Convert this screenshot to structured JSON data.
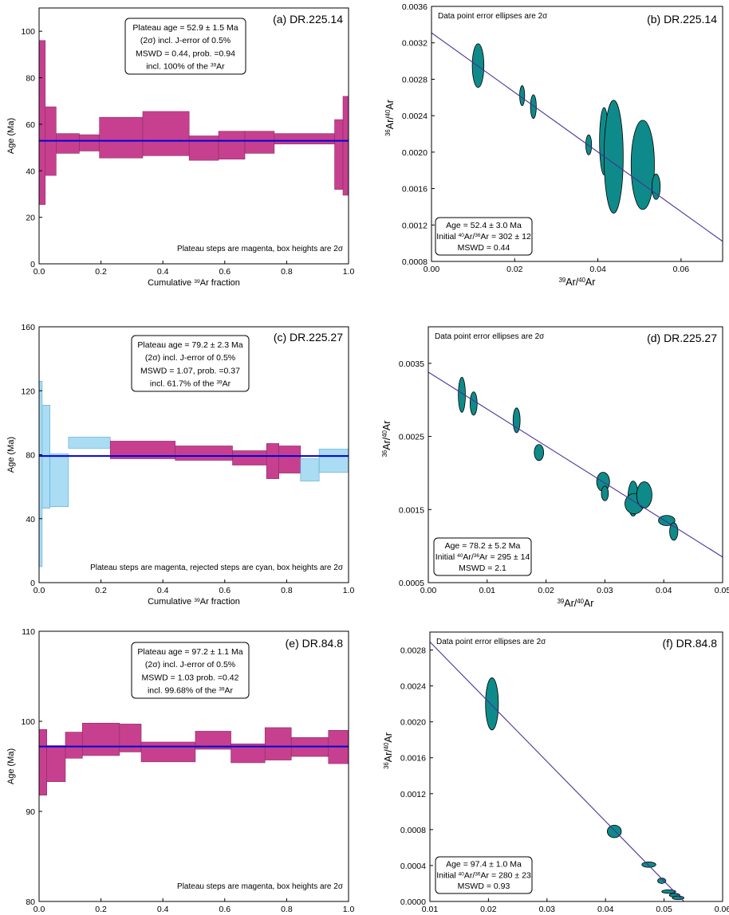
{
  "figure": {
    "panels": [
      {
        "id": "a",
        "title": "(a) DR.225.14"
      },
      {
        "id": "b",
        "title": "(b) DR.225.14"
      },
      {
        "id": "c",
        "title": "(c) DR.225.27"
      },
      {
        "id": "d",
        "title": "(d) DR.225.27"
      },
      {
        "id": "e",
        "title": "(e) DR.84.8"
      },
      {
        "id": "f",
        "title": "(f) DR.84.8"
      }
    ]
  },
  "chart_data": [
    {
      "panel": "a",
      "type": "bar",
      "subtype": "age-spectrum",
      "title": "(a) DR.225.14",
      "xlabel": "Cumulative 39Ar fraction",
      "ylabel": "Age (Ma)",
      "xlim": [
        0,
        1
      ],
      "ylim": [
        0,
        110
      ],
      "xticks": [
        0,
        0.2,
        0.4,
        0.6,
        0.8,
        1
      ],
      "xticklabels": [
        "0.0",
        "0.2",
        "0.4",
        "0.6",
        "0.8",
        "1.0"
      ],
      "yticks": [
        0,
        20,
        40,
        60,
        80,
        100
      ],
      "yticklabels": [
        "0",
        "20",
        "40",
        "60",
        "80",
        "100"
      ],
      "plateau_age": 52.9,
      "steps": [
        {
          "x0": 0.0,
          "x1": 0.02,
          "low": 25.5,
          "high": 96,
          "status": "plateau"
        },
        {
          "x0": 0.02,
          "x1": 0.055,
          "low": 38,
          "high": 67.5,
          "status": "plateau"
        },
        {
          "x0": 0.055,
          "x1": 0.13,
          "low": 47.5,
          "high": 56,
          "status": "plateau"
        },
        {
          "x0": 0.13,
          "x1": 0.195,
          "low": 48.5,
          "high": 55.5,
          "status": "plateau"
        },
        {
          "x0": 0.195,
          "x1": 0.335,
          "low": 45.5,
          "high": 63,
          "status": "plateau"
        },
        {
          "x0": 0.335,
          "x1": 0.485,
          "low": 46.5,
          "high": 65.5,
          "status": "plateau"
        },
        {
          "x0": 0.485,
          "x1": 0.58,
          "low": 44.5,
          "high": 55,
          "status": "plateau"
        },
        {
          "x0": 0.58,
          "x1": 0.665,
          "low": 45,
          "high": 57,
          "status": "plateau"
        },
        {
          "x0": 0.665,
          "x1": 0.76,
          "low": 47.5,
          "high": 57,
          "status": "plateau"
        },
        {
          "x0": 0.76,
          "x1": 0.955,
          "low": 51.5,
          "high": 56,
          "status": "plateau"
        },
        {
          "x0": 0.955,
          "x1": 0.982,
          "low": 32,
          "high": 62,
          "status": "plateau"
        },
        {
          "x0": 0.982,
          "x1": 1.0,
          "low": 29.5,
          "high": 72,
          "status": "plateau"
        }
      ],
      "info_lines": [
        "Plateau age = 52.9 ± 1.5 Ma",
        "(2σ) incl. J-error of 0.5%",
        "MSWD = 0.44, prob. =0.94",
        "incl. 100% of the 39Ar"
      ],
      "note": "Plateau steps are magenta, box heights are 2σ"
    },
    {
      "panel": "b",
      "type": "scatter",
      "subtype": "inverse-isochron",
      "title": "(b) DR.225.14",
      "xlabel": "39Ar/40Ar",
      "ylabel": "36Ar/40Ar",
      "xlim": [
        0,
        0.07
      ],
      "ylim": [
        0.0008,
        0.0036
      ],
      "xticks": [
        0,
        0.02,
        0.04,
        0.06
      ],
      "xticklabels": [
        "0.00",
        "0.02",
        "0.04",
        "0.06"
      ],
      "yticks": [
        0.0008,
        0.0012,
        0.0016,
        0.002,
        0.0024,
        0.0028,
        0.0032,
        0.0036
      ],
      "yticklabels": [
        "0.0008",
        "0.0012",
        "0.0016",
        "0.0020",
        "0.0024",
        "0.0028",
        "0.0032",
        "0.0036"
      ],
      "points": [
        {
          "x": 0.0112,
          "y": 0.00295,
          "ex": 0.0014,
          "ey": 0.00024
        },
        {
          "x": 0.0218,
          "y": 0.00262,
          "ex": 0.0006,
          "ey": 0.00011
        },
        {
          "x": 0.0245,
          "y": 0.0025,
          "ex": 0.0007,
          "ey": 0.00013
        },
        {
          "x": 0.0378,
          "y": 0.00208,
          "ex": 0.0007,
          "ey": 0.00011
        },
        {
          "x": 0.0415,
          "y": 0.00212,
          "ex": 0.0011,
          "ey": 0.00037
        },
        {
          "x": 0.0438,
          "y": 0.00195,
          "ex": 0.0023,
          "ey": 0.00062
        },
        {
          "x": 0.0508,
          "y": 0.00186,
          "ex": 0.0028,
          "ey": 0.00049
        },
        {
          "x": 0.054,
          "y": 0.00162,
          "ex": 0.001,
          "ey": 0.00014
        }
      ],
      "fit_line": [
        [
          0,
          0.00331
        ],
        [
          0.07,
          0.00102
        ]
      ],
      "header_note": "Data point error ellipses are 2σ",
      "info_lines": [
        "Age = 52.4 ± 3.0 Ma",
        "Initial 40Ar/36Ar = 302 ± 12",
        "MSWD = 0.44"
      ]
    },
    {
      "panel": "c",
      "type": "bar",
      "subtype": "age-spectrum",
      "title": "(c) DR.225.27",
      "xlabel": "Cumulative 39Ar fraction",
      "ylabel": "Age (Ma)",
      "xlim": [
        0,
        1
      ],
      "ylim": [
        0,
        160
      ],
      "xticks": [
        0,
        0.2,
        0.4,
        0.6,
        0.8,
        1
      ],
      "xticklabels": [
        "0.0",
        "0.2",
        "0.4",
        "0.6",
        "0.8",
        "1.0"
      ],
      "yticks": [
        0,
        40,
        80,
        120,
        160
      ],
      "yticklabels": [
        "0",
        "40",
        "80",
        "120",
        "160"
      ],
      "plateau_age": 79.2,
      "steps": [
        {
          "x0": 0.0,
          "x1": 0.01,
          "low": 10,
          "high": 126,
          "status": "rejected"
        },
        {
          "x0": 0.01,
          "x1": 0.035,
          "low": 46.5,
          "high": 111,
          "status": "rejected"
        },
        {
          "x0": 0.035,
          "x1": 0.095,
          "low": 47.5,
          "high": 80.5,
          "status": "rejected"
        },
        {
          "x0": 0.095,
          "x1": 0.23,
          "low": 84,
          "high": 91,
          "status": "rejected"
        },
        {
          "x0": 0.23,
          "x1": 0.44,
          "low": 77.5,
          "high": 88.5,
          "status": "plateau"
        },
        {
          "x0": 0.44,
          "x1": 0.625,
          "low": 76.5,
          "high": 85.5,
          "status": "plateau"
        },
        {
          "x0": 0.625,
          "x1": 0.735,
          "low": 73.5,
          "high": 82.5,
          "status": "plateau"
        },
        {
          "x0": 0.735,
          "x1": 0.775,
          "low": 65,
          "high": 87,
          "status": "plateau"
        },
        {
          "x0": 0.775,
          "x1": 0.845,
          "low": 68.5,
          "high": 85.5,
          "status": "plateau"
        },
        {
          "x0": 0.845,
          "x1": 0.905,
          "low": 63.5,
          "high": 77.5,
          "status": "rejected"
        },
        {
          "x0": 0.905,
          "x1": 1.0,
          "low": 69,
          "high": 83.5,
          "status": "rejected"
        }
      ],
      "info_lines": [
        "Plateau age = 79.2 ± 2.3 Ma",
        "(2σ) incl. J-error of 0.5%",
        "MSWD = 1.07, prob. =0.37",
        "incl. 61.7% of the 39Ar"
      ],
      "note": "Plateau steps are magenta, rejected steps are cyan, box heights are 2σ"
    },
    {
      "panel": "d",
      "type": "scatter",
      "subtype": "inverse-isochron",
      "title": "(d) DR.225.27",
      "xlabel": "39Ar/40Ar",
      "ylabel": "36Ar/40Ar",
      "xlim": [
        0,
        0.05
      ],
      "ylim": [
        0.0005,
        0.004
      ],
      "xticks": [
        0,
        0.01,
        0.02,
        0.03,
        0.04,
        0.05
      ],
      "xticklabels": [
        "0.00",
        "0.01",
        "0.02",
        "0.03",
        "0.04",
        "0.05"
      ],
      "yticks": [
        0.0005,
        0.0015,
        0.0025,
        0.0035
      ],
      "yticklabels": [
        "0.0005",
        "0.0015",
        "0.0025",
        "0.0035"
      ],
      "points": [
        {
          "x": 0.0057,
          "y": 0.00307,
          "ex": 0.0006,
          "ey": 0.00024
        },
        {
          "x": 0.0077,
          "y": 0.00295,
          "ex": 0.0006,
          "ey": 0.00016
        },
        {
          "x": 0.015,
          "y": 0.00272,
          "ex": 0.0006,
          "ey": 0.00017
        },
        {
          "x": 0.0188,
          "y": 0.00228,
          "ex": 0.0008,
          "ey": 0.00011
        },
        {
          "x": 0.0297,
          "y": 0.00188,
          "ex": 0.0011,
          "ey": 0.00013
        },
        {
          "x": 0.03,
          "y": 0.00172,
          "ex": 0.0006,
          "ey": 0.0001
        },
        {
          "x": 0.0348,
          "y": 0.00165,
          "ex": 0.0009,
          "ey": 0.00024
        },
        {
          "x": 0.035,
          "y": 0.00158,
          "ex": 0.0016,
          "ey": 0.00014
        },
        {
          "x": 0.0367,
          "y": 0.0017,
          "ex": 0.0013,
          "ey": 0.00018
        },
        {
          "x": 0.0405,
          "y": 0.00135,
          "ex": 0.0014,
          "ey": 7e-05
        },
        {
          "x": 0.0417,
          "y": 0.0012,
          "ex": 0.0007,
          "ey": 0.00012
        }
      ],
      "fit_line": [
        [
          0,
          0.00338
        ],
        [
          0.05,
          0.00085
        ]
      ],
      "header_note": "Data point error ellipses are 2σ",
      "info_lines": [
        "Age = 78.2 ± 5.2 Ma",
        "Initial 40Ar/36Ar = 295 ± 14",
        "MSWD = 2.1"
      ]
    },
    {
      "panel": "e",
      "type": "bar",
      "subtype": "age-spectrum",
      "title": "(e) DR.84.8",
      "xlabel": "Cumulative 39Ar fraction",
      "ylabel": "Age (Ma)",
      "xlim": [
        0,
        1
      ],
      "ylim": [
        80,
        110
      ],
      "xticks": [
        0,
        0.2,
        0.4,
        0.6,
        0.8,
        1
      ],
      "xticklabels": [
        "0.0",
        "0.2",
        "0.4",
        "0.6",
        "0.8",
        "1.0"
      ],
      "yticks": [
        80,
        90,
        100,
        110
      ],
      "yticklabels": [
        "80",
        "90",
        "100",
        "110"
      ],
      "plateau_age": 97.2,
      "steps": [
        {
          "x0": 0.0,
          "x1": 0.025,
          "low": 91.8,
          "high": 99.1,
          "status": "plateau"
        },
        {
          "x0": 0.025,
          "x1": 0.085,
          "low": 93.3,
          "high": 97.3,
          "status": "plateau"
        },
        {
          "x0": 0.085,
          "x1": 0.14,
          "low": 95.9,
          "high": 98.8,
          "status": "plateau"
        },
        {
          "x0": 0.14,
          "x1": 0.26,
          "low": 96.2,
          "high": 99.8,
          "status": "plateau"
        },
        {
          "x0": 0.26,
          "x1": 0.33,
          "low": 96.6,
          "high": 99.7,
          "status": "plateau"
        },
        {
          "x0": 0.33,
          "x1": 0.505,
          "low": 95.5,
          "high": 97.7,
          "status": "plateau"
        },
        {
          "x0": 0.505,
          "x1": 0.62,
          "low": 96.9,
          "high": 98.9,
          "status": "plateau"
        },
        {
          "x0": 0.62,
          "x1": 0.73,
          "low": 95.4,
          "high": 97.5,
          "status": "plateau"
        },
        {
          "x0": 0.73,
          "x1": 0.815,
          "low": 95.7,
          "high": 99.3,
          "status": "plateau"
        },
        {
          "x0": 0.815,
          "x1": 0.935,
          "low": 96.1,
          "high": 98.2,
          "status": "plateau"
        },
        {
          "x0": 0.935,
          "x1": 1.0,
          "low": 95.3,
          "high": 99.0,
          "status": "plateau"
        }
      ],
      "info_lines": [
        "Plateau age = 97.2 ± 1.1 Ma",
        "(2σ) incl. J-error of 0.5%",
        "MSWD = 1.03 prob. =0.42",
        "incl. 99.68% of the 39Ar"
      ],
      "note": "Plateau steps are magenta, box heights are 2σ"
    },
    {
      "panel": "f",
      "type": "scatter",
      "subtype": "inverse-isochron",
      "title": "(f) DR.84.8",
      "xlabel": "39Ar/40Ar",
      "ylabel": "36Ar/40Ar",
      "xlim": [
        0.01,
        0.06
      ],
      "ylim": [
        0,
        0.003
      ],
      "xticks": [
        0.01,
        0.02,
        0.03,
        0.04,
        0.05,
        0.06
      ],
      "xticklabels": [
        "0.01",
        "0.02",
        "0.03",
        "0.04",
        "0.05",
        "0.06"
      ],
      "yticks": [
        0,
        0.0004,
        0.0008,
        0.0012,
        0.0016,
        0.002,
        0.0024,
        0.0028
      ],
      "yticklabels": [
        "0.0000",
        "0.0004",
        "0.0008",
        "0.0012",
        "0.0016",
        "0.0020",
        "0.0024",
        "0.0028"
      ],
      "points": [
        {
          "x": 0.0206,
          "y": 0.0022,
          "ex": 0.0011,
          "ey": 0.00029
        },
        {
          "x": 0.0415,
          "y": 0.00078,
          "ex": 0.0012,
          "ey": 7e-05
        },
        {
          "x": 0.0474,
          "y": 0.00041,
          "ex": 0.0012,
          "ey": 3e-05
        },
        {
          "x": 0.0496,
          "y": 0.00023,
          "ex": 0.0007,
          "ey": 3e-05
        },
        {
          "x": 0.0508,
          "y": 0.00011,
          "ex": 0.0012,
          "ey": 2e-05
        },
        {
          "x": 0.0518,
          "y": 7e-05,
          "ex": 0.0009,
          "ey": 2e-05
        },
        {
          "x": 0.0524,
          "y": 4e-05,
          "ex": 0.001,
          "ey": 2e-05
        }
      ],
      "fit_line": [
        [
          0.01,
          0.00289
        ],
        [
          0.0534,
          0.0
        ]
      ],
      "header_note": "Data point error ellipses are 2σ",
      "info_lines": [
        "Age = 97.4 ± 1.0 Ma",
        "Initial 40Ar/36Ar = 280 ± 23",
        "MSWD = 0.93"
      ]
    }
  ],
  "colors": {
    "plateau_step": "#c7408f",
    "rejected_step": "#aadcf4",
    "plateau_line": "#0000d8",
    "ellipse_fill": "#0f8a8a",
    "fit_line": "#4a2f98"
  }
}
